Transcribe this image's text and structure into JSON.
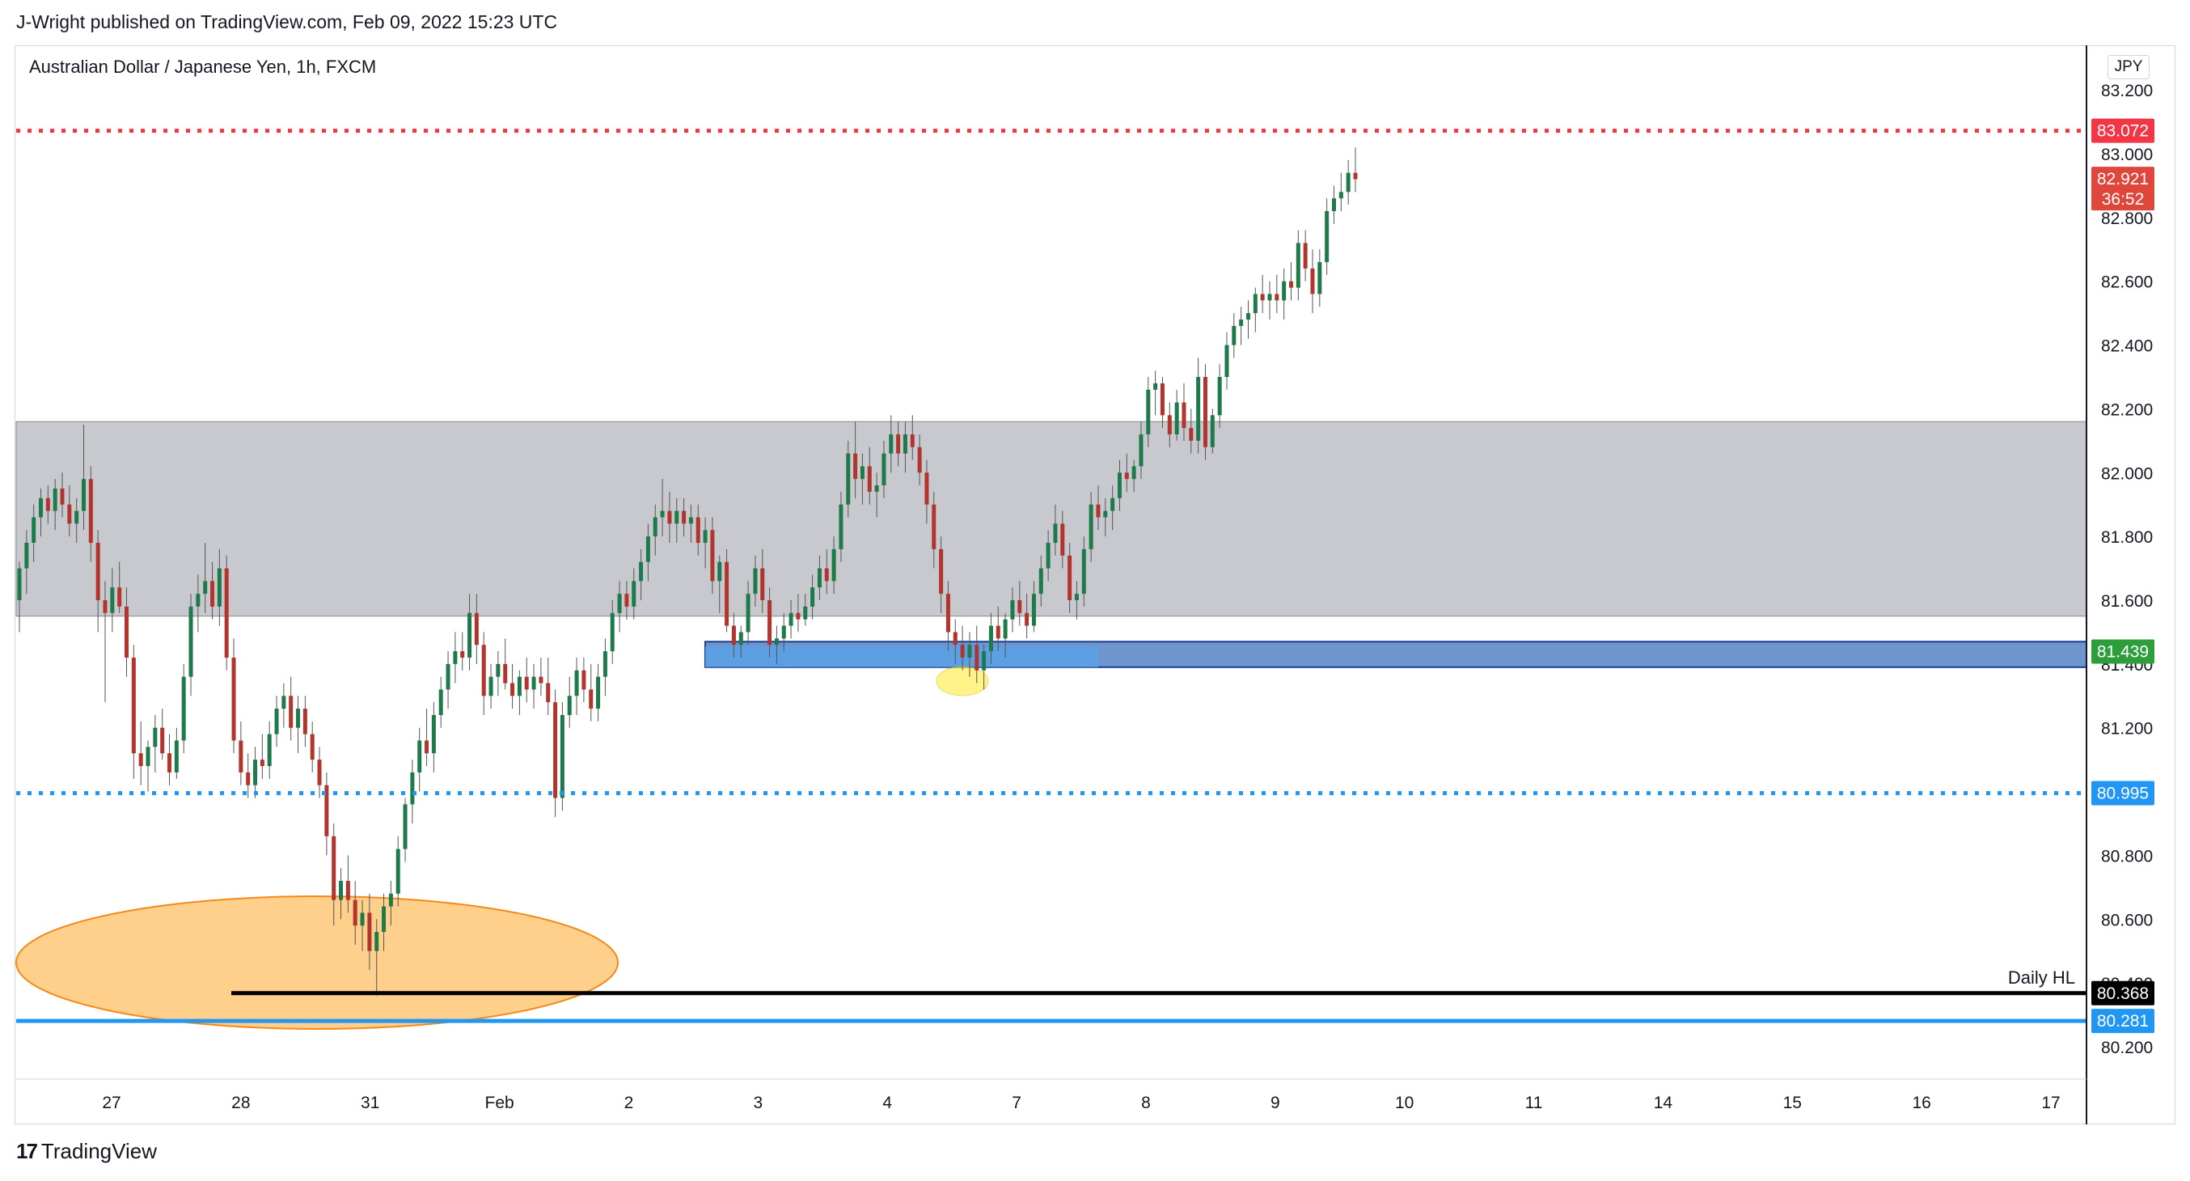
{
  "header": {
    "publish_line": "J-Wright published on TradingView.com, Feb 09, 2022 15:23 UTC"
  },
  "chart_header": {
    "symbol_title": "Australian Dollar / Japanese Yen, 1h, FXCM",
    "currency": "JPY"
  },
  "footer": {
    "brand": "TradingView",
    "logo_mark": "17"
  },
  "colors": {
    "up": "#26a69a",
    "up_body": "#1e7a4a",
    "down": "#b2352d",
    "red_line": "#f23645",
    "blue_line": "#2196f3",
    "resistance_zone": "#c8c9ce",
    "support_zone": "#6f95cf",
    "demand_zone": "#5aa1e6",
    "ellipse_fill": "#ffcc80",
    "ellipse_stroke": "#f57c00",
    "highlight": "#ffeb3b"
  },
  "chart_data": {
    "type": "candlestick",
    "title": "Australian Dollar / Japanese Yen, 1h, FXCM",
    "y_axis": {
      "ticks": [
        "83.200",
        "83.000",
        "82.800",
        "82.600",
        "82.400",
        "82.200",
        "82.000",
        "81.800",
        "81.600",
        "81.400",
        "81.200",
        "80.800",
        "80.600",
        "80.400",
        "80.200"
      ],
      "range": [
        80.1,
        83.3
      ]
    },
    "x_axis": {
      "ticks": [
        "27",
        "28",
        "31",
        "Feb",
        "2",
        "3",
        "4",
        "7",
        "8",
        "9",
        "10",
        "11",
        "14",
        "15",
        "16",
        "17"
      ]
    },
    "horizontal_lines": [
      {
        "name": "red-dotted-resistance",
        "value": 83.072,
        "label": "83.072",
        "style": "dotted",
        "color": "#f23645"
      },
      {
        "name": "blue-dotted-level",
        "value": 80.995,
        "label": "80.995",
        "style": "dotted",
        "color": "#2196f3"
      },
      {
        "name": "daily-hl",
        "value": 80.368,
        "label": "80.368",
        "text": "Daily HL",
        "style": "solid",
        "color": "#000000"
      },
      {
        "name": "blue-solid-level",
        "value": 80.281,
        "label": "80.281",
        "style": "solid",
        "color": "#2196f3"
      }
    ],
    "zones": [
      {
        "name": "resistance-zone",
        "top": 82.16,
        "bottom": 81.55
      },
      {
        "name": "support-zone",
        "top": 81.47,
        "bottom": 81.39,
        "label": "81.439"
      }
    ],
    "last_price": {
      "value": 82.921,
      "label": "82.921",
      "countdown": "36:52"
    },
    "candles": [
      [
        81.6,
        81.72,
        81.5,
        81.7
      ],
      [
        81.7,
        81.82,
        81.62,
        81.78
      ],
      [
        81.78,
        81.9,
        81.72,
        81.86
      ],
      [
        81.86,
        81.95,
        81.8,
        81.92
      ],
      [
        81.92,
        81.96,
        81.84,
        81.88
      ],
      [
        81.88,
        81.98,
        81.82,
        81.95
      ],
      [
        81.95,
        82.0,
        81.86,
        81.9
      ],
      [
        81.9,
        81.96,
        81.8,
        81.84
      ],
      [
        81.84,
        81.92,
        81.78,
        81.88
      ],
      [
        81.88,
        82.15,
        81.82,
        81.98
      ],
      [
        81.98,
        82.02,
        81.72,
        81.78
      ],
      [
        81.78,
        81.82,
        81.5,
        81.6
      ],
      [
        81.6,
        81.66,
        81.28,
        81.56
      ],
      [
        81.56,
        81.7,
        81.5,
        81.64
      ],
      [
        81.64,
        81.72,
        81.56,
        81.58
      ],
      [
        81.58,
        81.64,
        81.36,
        81.42
      ],
      [
        81.42,
        81.46,
        81.04,
        81.12
      ],
      [
        81.12,
        81.22,
        81.02,
        81.08
      ],
      [
        81.08,
        81.16,
        81.0,
        81.14
      ],
      [
        81.14,
        81.24,
        81.06,
        81.2
      ],
      [
        81.2,
        81.26,
        81.1,
        81.12
      ],
      [
        81.12,
        81.18,
        81.02,
        81.06
      ],
      [
        81.06,
        81.2,
        81.04,
        81.16
      ],
      [
        81.16,
        81.4,
        81.12,
        81.36
      ],
      [
        81.36,
        81.62,
        81.3,
        81.58
      ],
      [
        81.58,
        81.68,
        81.5,
        81.62
      ],
      [
        81.62,
        81.78,
        81.56,
        81.66
      ],
      [
        81.66,
        81.72,
        81.54,
        81.58
      ],
      [
        81.58,
        81.76,
        81.52,
        81.7
      ],
      [
        81.7,
        81.74,
        81.38,
        81.42
      ],
      [
        81.42,
        81.48,
        81.12,
        81.16
      ],
      [
        81.16,
        81.22,
        81.02,
        81.06
      ],
      [
        81.06,
        81.12,
        80.98,
        81.02
      ],
      [
        81.02,
        81.14,
        80.98,
        81.1
      ],
      [
        81.1,
        81.18,
        81.04,
        81.08
      ],
      [
        81.08,
        81.22,
        81.04,
        81.18
      ],
      [
        81.18,
        81.3,
        81.14,
        81.26
      ],
      [
        81.26,
        81.34,
        81.2,
        81.3
      ],
      [
        81.3,
        81.36,
        81.16,
        81.2
      ],
      [
        81.2,
        81.3,
        81.12,
        81.26
      ],
      [
        81.26,
        81.3,
        81.14,
        81.18
      ],
      [
        81.18,
        81.22,
        81.06,
        81.1
      ],
      [
        81.1,
        81.14,
        80.98,
        81.02
      ],
      [
        81.02,
        81.06,
        80.8,
        80.86
      ],
      [
        80.86,
        80.9,
        80.58,
        80.66
      ],
      [
        80.66,
        80.76,
        80.6,
        80.72
      ],
      [
        80.72,
        80.8,
        80.62,
        80.66
      ],
      [
        80.66,
        80.72,
        80.52,
        80.58
      ],
      [
        80.58,
        80.66,
        80.5,
        80.62
      ],
      [
        80.62,
        80.68,
        80.44,
        80.5
      ],
      [
        80.5,
        80.6,
        80.36,
        80.56
      ],
      [
        80.56,
        80.68,
        80.5,
        80.64
      ],
      [
        80.64,
        80.72,
        80.58,
        80.68
      ],
      [
        80.68,
        80.86,
        80.64,
        80.82
      ],
      [
        80.82,
        80.98,
        80.78,
        80.96
      ],
      [
        80.96,
        81.1,
        80.9,
        81.06
      ],
      [
        81.06,
        81.2,
        81.0,
        81.16
      ],
      [
        81.16,
        81.26,
        81.08,
        81.12
      ],
      [
        81.12,
        81.28,
        81.06,
        81.24
      ],
      [
        81.24,
        81.36,
        81.2,
        81.32
      ],
      [
        81.32,
        81.44,
        81.26,
        81.4
      ],
      [
        81.4,
        81.5,
        81.34,
        81.44
      ],
      [
        81.44,
        81.5,
        81.38,
        81.42
      ],
      [
        81.42,
        81.62,
        81.38,
        81.56
      ],
      [
        81.56,
        81.62,
        81.4,
        81.46
      ],
      [
        81.46,
        81.5,
        81.24,
        81.3
      ],
      [
        81.3,
        81.4,
        81.26,
        81.36
      ],
      [
        81.36,
        81.44,
        81.3,
        81.4
      ],
      [
        81.4,
        81.48,
        81.32,
        81.34
      ],
      [
        81.34,
        81.4,
        81.26,
        81.3
      ],
      [
        81.3,
        81.38,
        81.24,
        81.36
      ],
      [
        81.36,
        81.42,
        81.28,
        81.32
      ],
      [
        81.32,
        81.4,
        81.26,
        81.36
      ],
      [
        81.36,
        81.42,
        81.3,
        81.34
      ],
      [
        81.34,
        81.42,
        81.24,
        81.28
      ],
      [
        81.28,
        81.32,
        80.92,
        80.98
      ],
      [
        80.98,
        81.28,
        80.94,
        81.24
      ],
      [
        81.24,
        81.36,
        81.2,
        81.3
      ],
      [
        81.3,
        81.42,
        81.24,
        81.38
      ],
      [
        81.38,
        81.42,
        81.28,
        81.32
      ],
      [
        81.32,
        81.4,
        81.22,
        81.26
      ],
      [
        81.26,
        81.4,
        81.22,
        81.36
      ],
      [
        81.36,
        81.48,
        81.3,
        81.44
      ],
      [
        81.44,
        81.6,
        81.4,
        81.56
      ],
      [
        81.56,
        81.66,
        81.5,
        81.62
      ],
      [
        81.62,
        81.66,
        81.54,
        81.58
      ],
      [
        81.58,
        81.7,
        81.54,
        81.66
      ],
      [
        81.66,
        81.76,
        81.6,
        81.72
      ],
      [
        81.72,
        81.84,
        81.66,
        81.8
      ],
      [
        81.8,
        81.9,
        81.74,
        81.86
      ],
      [
        81.86,
        81.98,
        81.8,
        81.88
      ],
      [
        81.88,
        81.94,
        81.78,
        81.84
      ],
      [
        81.84,
        81.92,
        81.78,
        81.88
      ],
      [
        81.88,
        81.92,
        81.8,
        81.84
      ],
      [
        81.84,
        81.9,
        81.78,
        81.86
      ],
      [
        81.86,
        81.9,
        81.74,
        81.78
      ],
      [
        81.78,
        81.86,
        81.7,
        81.82
      ],
      [
        81.82,
        81.86,
        81.62,
        81.66
      ],
      [
        81.66,
        81.74,
        81.56,
        81.72
      ],
      [
        81.72,
        81.76,
        81.5,
        81.52
      ],
      [
        81.52,
        81.56,
        81.42,
        81.46
      ],
      [
        81.46,
        81.52,
        81.42,
        81.5
      ],
      [
        81.5,
        81.66,
        81.46,
        81.62
      ],
      [
        81.62,
        81.74,
        81.58,
        81.7
      ],
      [
        81.7,
        81.76,
        81.56,
        81.6
      ],
      [
        81.6,
        81.64,
        81.42,
        81.46
      ],
      [
        81.46,
        81.52,
        81.4,
        81.48
      ],
      [
        81.48,
        81.56,
        81.44,
        81.52
      ],
      [
        81.52,
        81.6,
        81.48,
        81.56
      ],
      [
        81.56,
        81.62,
        81.5,
        81.54
      ],
      [
        81.54,
        81.62,
        81.52,
        81.58
      ],
      [
        81.58,
        81.68,
        81.54,
        81.64
      ],
      [
        81.64,
        81.74,
        81.6,
        81.7
      ],
      [
        81.7,
        81.76,
        81.62,
        81.66
      ],
      [
        81.66,
        81.8,
        81.62,
        81.76
      ],
      [
        81.76,
        81.94,
        81.72,
        81.9
      ],
      [
        81.9,
        82.1,
        81.86,
        82.06
      ],
      [
        82.06,
        82.16,
        81.92,
        81.98
      ],
      [
        81.98,
        82.06,
        81.9,
        82.02
      ],
      [
        82.02,
        82.08,
        81.9,
        81.94
      ],
      [
        81.94,
        82.0,
        81.86,
        81.96
      ],
      [
        81.96,
        82.1,
        81.92,
        82.06
      ],
      [
        82.06,
        82.18,
        82.0,
        82.12
      ],
      [
        82.12,
        82.16,
        82.02,
        82.06
      ],
      [
        82.06,
        82.16,
        82.0,
        82.12
      ],
      [
        82.12,
        82.18,
        82.04,
        82.08
      ],
      [
        82.08,
        82.12,
        81.96,
        82.0
      ],
      [
        82.0,
        82.04,
        81.84,
        81.9
      ],
      [
        81.9,
        81.94,
        81.7,
        81.76
      ],
      [
        81.76,
        81.8,
        81.56,
        81.62
      ],
      [
        81.62,
        81.66,
        81.44,
        81.5
      ],
      [
        81.5,
        81.54,
        81.4,
        81.46
      ],
      [
        81.46,
        81.52,
        81.38,
        81.42
      ],
      [
        81.42,
        81.5,
        81.36,
        81.46
      ],
      [
        81.46,
        81.52,
        81.34,
        81.38
      ],
      [
        81.38,
        81.46,
        81.32,
        81.44
      ],
      [
        81.44,
        81.56,
        81.4,
        81.52
      ],
      [
        81.52,
        81.58,
        81.44,
        81.48
      ],
      [
        81.48,
        81.56,
        81.42,
        81.54
      ],
      [
        81.54,
        81.64,
        81.5,
        81.6
      ],
      [
        81.6,
        81.66,
        81.52,
        81.56
      ],
      [
        81.56,
        81.62,
        81.48,
        81.52
      ],
      [
        81.52,
        81.66,
        81.5,
        81.62
      ],
      [
        81.62,
        81.74,
        81.58,
        81.7
      ],
      [
        81.7,
        81.82,
        81.66,
        81.78
      ],
      [
        81.78,
        81.9,
        81.74,
        81.84
      ],
      [
        81.84,
        81.88,
        81.7,
        81.74
      ],
      [
        81.74,
        81.78,
        81.56,
        81.6
      ],
      [
        81.6,
        81.66,
        81.54,
        81.62
      ],
      [
        81.62,
        81.8,
        81.58,
        81.76
      ],
      [
        81.76,
        81.94,
        81.72,
        81.9
      ],
      [
        81.9,
        81.96,
        81.82,
        81.86
      ],
      [
        81.86,
        81.92,
        81.8,
        81.88
      ],
      [
        81.88,
        81.96,
        81.82,
        81.92
      ],
      [
        81.92,
        82.04,
        81.88,
        82.0
      ],
      [
        82.0,
        82.06,
        81.94,
        81.98
      ],
      [
        81.98,
        82.04,
        81.94,
        82.02
      ],
      [
        82.02,
        82.16,
        81.98,
        82.12
      ],
      [
        82.12,
        82.3,
        82.08,
        82.26
      ],
      [
        82.26,
        82.32,
        82.18,
        82.28
      ],
      [
        82.28,
        82.3,
        82.14,
        82.18
      ],
      [
        82.18,
        82.22,
        82.08,
        82.12
      ],
      [
        82.12,
        82.26,
        82.1,
        82.22
      ],
      [
        82.22,
        82.28,
        82.1,
        82.14
      ],
      [
        82.14,
        82.2,
        82.06,
        82.1
      ],
      [
        82.1,
        82.36,
        82.06,
        82.3
      ],
      [
        82.3,
        82.34,
        82.04,
        82.08
      ],
      [
        82.08,
        82.2,
        82.06,
        82.18
      ],
      [
        82.18,
        82.34,
        82.14,
        82.3
      ],
      [
        82.3,
        82.44,
        82.26,
        82.4
      ],
      [
        82.4,
        82.5,
        82.36,
        82.46
      ],
      [
        82.46,
        82.52,
        82.4,
        82.48
      ],
      [
        82.48,
        82.54,
        82.42,
        82.5
      ],
      [
        82.5,
        82.58,
        82.44,
        82.56
      ],
      [
        82.56,
        82.62,
        82.5,
        82.54
      ],
      [
        82.54,
        82.6,
        82.48,
        82.56
      ],
      [
        82.56,
        82.62,
        82.5,
        82.54
      ],
      [
        82.54,
        82.64,
        82.48,
        82.6
      ],
      [
        82.6,
        82.66,
        82.54,
        82.58
      ],
      [
        82.58,
        82.76,
        82.54,
        82.72
      ],
      [
        82.72,
        82.76,
        82.6,
        82.64
      ],
      [
        82.64,
        82.7,
        82.5,
        82.56
      ],
      [
        82.56,
        82.7,
        82.52,
        82.66
      ],
      [
        82.66,
        82.86,
        82.62,
        82.82
      ],
      [
        82.82,
        82.9,
        82.78,
        82.86
      ],
      [
        82.86,
        82.94,
        82.82,
        82.88
      ],
      [
        82.88,
        82.98,
        82.84,
        82.94
      ],
      [
        82.94,
        83.02,
        82.88,
        82.92
      ]
    ]
  }
}
